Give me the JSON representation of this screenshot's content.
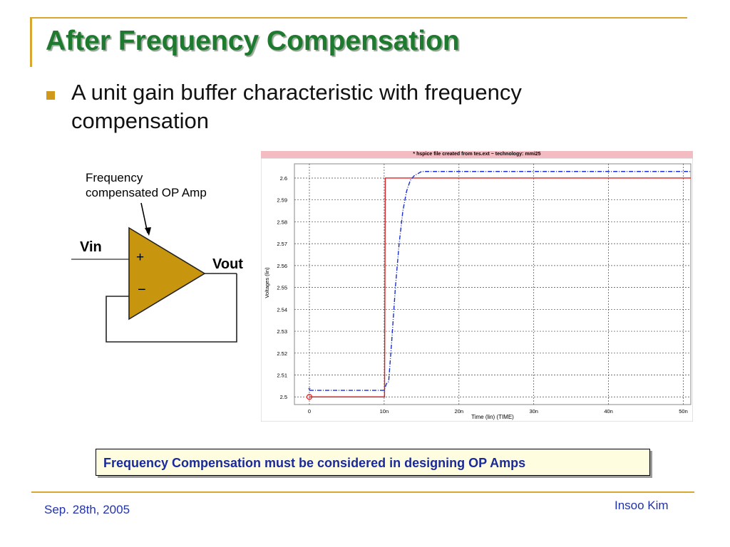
{
  "slide": {
    "title": "After Frequency Compensation",
    "bullet": "A unit gain buffer characteristic with frequency compensation",
    "callout": "Frequency Compensation must be considered in designing OP Amps",
    "footer_date": "Sep. 28th, 2005",
    "footer_author": "Insoo Kim"
  },
  "schematic": {
    "amp_note_line1": "Frequency",
    "amp_note_line2": "compensated OP Amp",
    "vin_label": "Vin",
    "vout_label": "Vout",
    "plus_sign": "+",
    "minus_sign": "−"
  },
  "colors": {
    "title": "#1e7a2e",
    "opamp_fill": "#c8960e",
    "input_trace": "#e02020",
    "output_trace": "#1a2fd0",
    "footer_text": "#2133a6"
  },
  "chart_data": {
    "type": "line",
    "title": "* hspice file created from tes.ext ~ technology: mmi25",
    "xlabel": "Time (lin) (TIME)",
    "ylabel": "Voltages (lin)",
    "xlim": [
      -2,
      51
    ],
    "ylim": [
      2.4965,
      2.6065
    ],
    "xticks": [
      "0",
      "10n",
      "20n",
      "30n",
      "40n",
      "50n"
    ],
    "xtick_values": [
      0,
      10,
      20,
      30,
      40,
      50
    ],
    "yticks": [
      "2.5",
      "2.51",
      "2.52",
      "2.53",
      "2.54",
      "2.55",
      "2.56",
      "2.57",
      "2.58",
      "2.59",
      "2.6"
    ],
    "ytick_values": [
      2.5,
      2.51,
      2.52,
      2.53,
      2.54,
      2.55,
      2.56,
      2.57,
      2.58,
      2.59,
      2.6
    ],
    "grid": true,
    "series": [
      {
        "x": [
          0,
          10.05,
          10.15,
          51
        ],
        "y": [
          2.5,
          2.5,
          2.6,
          2.6
        ]
      },
      {
        "x": [
          0,
          10.0,
          10.3,
          10.6,
          11.0,
          11.5,
          12.0,
          12.5,
          13.0,
          13.5,
          14.0,
          14.5,
          15.0,
          16.0,
          17.0,
          51
        ],
        "y": [
          2.503,
          2.503,
          2.506,
          2.507,
          2.525,
          2.55,
          2.57,
          2.585,
          2.594,
          2.599,
          2.601,
          2.602,
          2.603,
          2.603,
          2.603,
          2.603
        ]
      }
    ]
  }
}
